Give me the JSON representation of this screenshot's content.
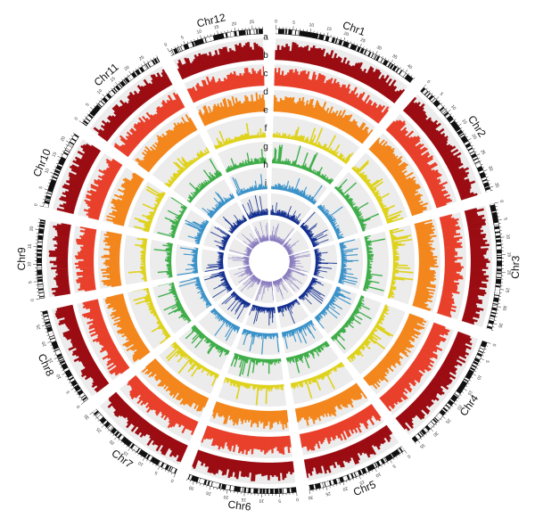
{
  "chart_data": {
    "type": "circos",
    "chromosomes": [
      {
        "name": "Chr1",
        "length": 43
      },
      {
        "name": "Chr2",
        "length": 36
      },
      {
        "name": "Chr3",
        "length": 37
      },
      {
        "name": "Chr4",
        "length": 36
      },
      {
        "name": "Chr5",
        "length": 30
      },
      {
        "name": "Chr6",
        "length": 32
      },
      {
        "name": "Chr7",
        "length": 30
      },
      {
        "name": "Chr8",
        "length": 29
      },
      {
        "name": "Chr9",
        "length": 23
      },
      {
        "name": "Chr10",
        "length": 23
      },
      {
        "name": "Chr11",
        "length": 29
      },
      {
        "name": "Chr12",
        "length": 28
      }
    ],
    "tick_step": 5,
    "tracks": [
      {
        "letter": "a",
        "color": "#9b0d12"
      },
      {
        "letter": "b",
        "color": "#e8402b"
      },
      {
        "letter": "c",
        "color": "#f3871d"
      },
      {
        "letter": "d",
        "color": "#dfd21c"
      },
      {
        "letter": "e",
        "color": "#3fae4a"
      },
      {
        "letter": "f",
        "color": "#3a92c9"
      },
      {
        "letter": "g",
        "color": "#15318f"
      },
      {
        "letter": "h",
        "color": "#8b7fc0"
      },
      {
        "letter": "i",
        "color": ""
      }
    ]
  }
}
